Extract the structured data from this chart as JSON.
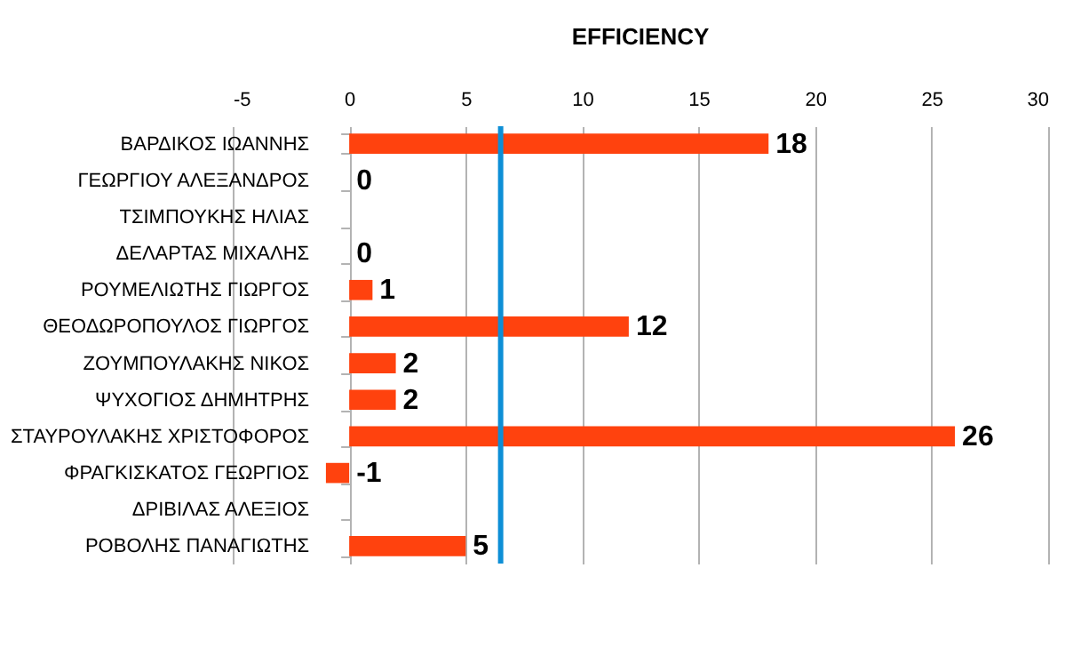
{
  "chart_data": {
    "type": "bar",
    "orientation": "horizontal",
    "title": "EFFICIENCY",
    "categories": [
      "ΒΑΡΔΙΚΟΣ ΙΩΑΝΝΗΣ",
      "ΓΕΩΡΓΙΟΥ ΑΛΕΞΑΝΔΡΟΣ",
      "ΤΣΙΜΠΟΥΚΗΣ ΗΛΙΑΣ",
      "ΔΕΛΑΡΤΑΣ ΜΙΧΑΛΗΣ",
      "ΡΟΥΜΕΛΙΩΤΗΣ ΓΙΩΡΓΟΣ",
      "ΘΕΟΔΩΡΟΠΟΥΛΟΣ ΓΙΩΡΓΟΣ",
      "ΖΟΥΜΠΟΥΛΑΚΗΣ ΝΙΚΟΣ",
      "ΨΥΧΟΓΙΟΣ ΔΗΜΗΤΡΗΣ",
      "ΣΤΑΥΡΟΥΛΑΚΗΣ ΧΡΙΣΤΟΦΟΡΟΣ",
      "ΦΡΑΓΚΙΣΚΑΤΟΣ ΓΕΩΡΓΙΟΣ",
      "ΔΡΙΒΙΛΑΣ ΑΛΕΞΙΟΣ",
      "ΡΟΒΟΛΗΣ ΠΑΝΑΓΙΩΤΗΣ"
    ],
    "values": [
      18,
      0,
      null,
      0,
      1,
      12,
      2,
      2,
      26,
      -1,
      null,
      5
    ],
    "color": "#ff420e",
    "xlim": [
      -5,
      30
    ],
    "xticks": [
      -5,
      0,
      5,
      10,
      15,
      20,
      25,
      30
    ],
    "ref_lines": [
      {
        "axis": "x",
        "value": 6.5,
        "color": "#0e8fd6"
      }
    ],
    "grid": "x",
    "data_labels": true
  }
}
